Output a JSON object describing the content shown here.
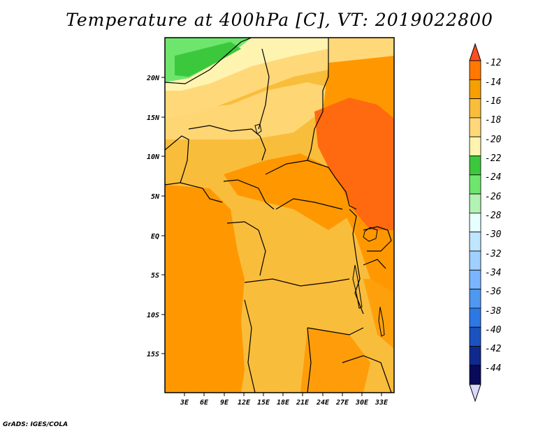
{
  "title": "Temperature at 400hPa [C], VT: 2019022800",
  "credit": "GrADS: IGES/COLA",
  "map": {
    "lat_labels": [
      "20N",
      "15N",
      "10N",
      "5N",
      "EQ",
      "5S",
      "10S",
      "15S"
    ],
    "lon_labels": [
      "3E",
      "6E",
      "9E",
      "12E",
      "15E",
      "18E",
      "21E",
      "24E",
      "27E",
      "30E",
      "33E"
    ]
  },
  "colorbar": {
    "labels": [
      "-12",
      "-14",
      "-16",
      "-18",
      "-20",
      "-22",
      "-24",
      "-26",
      "-28",
      "-30",
      "-32",
      "-34",
      "-36",
      "-38",
      "-40",
      "-42",
      "-44"
    ],
    "colors": [
      "#ff4e1f",
      "#ff7800",
      "#f5a000",
      "#f9bd3c",
      "#ffd87a",
      "#fff3b0",
      "#3cc83c",
      "#6ee66e",
      "#b2f2b2",
      "#e6ffff",
      "#bfe6ff",
      "#9fd0ff",
      "#7ab6ff",
      "#4f98f0",
      "#2e78e6",
      "#1a52c0",
      "#0f2a8c",
      "#0a0a5a",
      "#d9d9ff"
    ]
  }
}
